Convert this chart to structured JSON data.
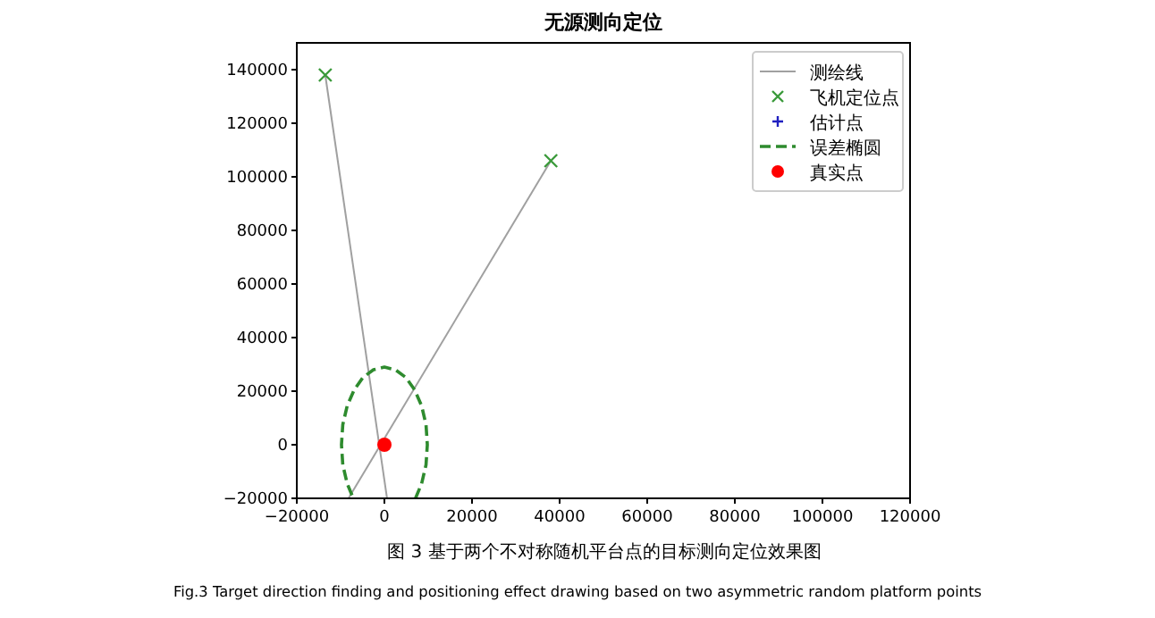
{
  "chart_data": {
    "type": "line",
    "title": "无源测向定位",
    "xlim": [
      -20000,
      120000
    ],
    "xticks": [
      {
        "value": -20000,
        "label": "−20000"
      },
      0,
      20000,
      40000,
      60000,
      80000,
      100000,
      120000
    ],
    "ylim": [
      -20000,
      150000
    ],
    "yticks": [
      {
        "value": -20000,
        "label": "−20000"
      },
      0,
      20000,
      40000,
      60000,
      80000,
      100000,
      120000,
      140000
    ],
    "grid": false,
    "legend": "top right",
    "series": [
      {
        "name": "测绘线",
        "color": "#a0a0a0",
        "line_style": "solid",
        "marker": "none",
        "x": [
          -13500,
          600
        ],
        "values": [
          138000,
          -20000
        ]
      },
      {
        "color": "#a0a0a0",
        "line_style": "solid",
        "marker": "none",
        "x": [
          38000,
          -8200
        ],
        "values": [
          106000,
          -20000
        ]
      },
      {
        "name": "飞机定位点",
        "type": "scatter",
        "color": "#3a9a3a",
        "marker": "cross",
        "x": [
          -13500,
          38000
        ],
        "values": [
          138000,
          106000
        ]
      },
      {
        "name": "估计点",
        "type": "scatter",
        "color": "#2020c0",
        "marker": "plus"
      },
      {
        "name": "误差椭圆",
        "color": "#2e8b2e",
        "line_style": "dashed",
        "marker": "none",
        "x": [
          7100,
          8500,
          9500,
          9800,
          9500,
          8500,
          6900,
          4900,
          2500,
          0,
          -2500,
          -4900,
          -6900,
          -8500,
          -9500,
          -9800,
          -9500,
          -8500,
          -7100
        ],
        "values": [
          -20000,
          -14500,
          -7500,
          0,
          7500,
          14500,
          20500,
          25100,
          28000,
          29000,
          28000,
          25100,
          20500,
          14500,
          7500,
          0,
          -7500,
          -14500,
          -20000
        ]
      },
      {
        "name": "真实点",
        "type": "scatter",
        "color": "#ff0000",
        "marker": "circle",
        "x": [
          0
        ],
        "values": [
          0
        ]
      }
    ],
    "annotations": [
      "图 3 基于两个不对称随机平台点的目标测向定位效果图",
      "Fig.3 Target direction finding and positioning eﬀect drawing based on two asymmetric random platform points"
    ]
  }
}
